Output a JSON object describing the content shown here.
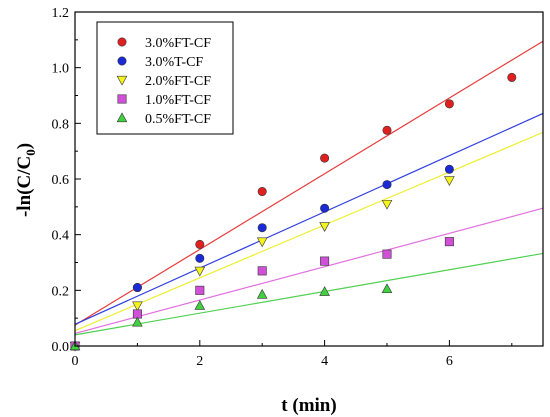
{
  "chart_data": {
    "type": "scatter",
    "xlabel": "t (min)",
    "ylabel_main": "-ln(C/C",
    "ylabel_sub": "0",
    "ylabel_close": ")",
    "xlim": [
      0,
      7.5
    ],
    "ylim": [
      0,
      1.2
    ],
    "x_ticks": [
      "0",
      "2",
      "4",
      "6"
    ],
    "x_tick_values": [
      0,
      2,
      4,
      6
    ],
    "y_ticks": [
      "0.0",
      "0.2",
      "0.4",
      "0.6",
      "0.8",
      "1.0",
      "1.2"
    ],
    "y_tick_values": [
      0,
      0.2,
      0.4,
      0.6,
      0.8,
      1.0,
      1.2
    ],
    "legend_position": "top-left",
    "series": [
      {
        "name": "3.0%FT-CF",
        "marker": "circle",
        "color": "#e02020",
        "line_color": "#e83a3a",
        "x": [
          0,
          1,
          2,
          3,
          4,
          5,
          6,
          7
        ],
        "y": [
          0.0,
          0.21,
          0.365,
          0.555,
          0.675,
          0.775,
          0.87,
          0.965
        ],
        "fit": [
          0.075,
          0.136
        ]
      },
      {
        "name": "3.0%T-CF",
        "marker": "circle",
        "color": "#1a2ad6",
        "line_color": "#2f3fe0",
        "x": [
          0,
          1,
          2,
          3,
          4,
          5,
          6
        ],
        "y": [
          0.0,
          0.21,
          0.315,
          0.425,
          0.495,
          0.58,
          0.635
        ],
        "fit": [
          0.078,
          0.101
        ]
      },
      {
        "name": "2.0%FT-CF",
        "marker": "triangle-down",
        "color": "#f4f41c",
        "line_color": "#eeee30",
        "x": [
          0,
          1,
          2,
          3,
          4,
          5,
          6
        ],
        "y": [
          0.0,
          0.145,
          0.27,
          0.375,
          0.43,
          0.51,
          0.595
        ],
        "fit": [
          0.055,
          0.095
        ]
      },
      {
        "name": "1.0%FT-CF",
        "marker": "square",
        "color": "#d050d8",
        "line_color": "#e070e0",
        "x": [
          0,
          1,
          2,
          3,
          4,
          5,
          6
        ],
        "y": [
          0.0,
          0.115,
          0.2,
          0.27,
          0.305,
          0.33,
          0.375
        ],
        "fit": [
          0.045,
          0.06
        ]
      },
      {
        "name": "0.5%FT-CF",
        "marker": "triangle-up",
        "color": "#40d040",
        "line_color": "#50d050",
        "x": [
          0,
          1,
          2,
          3,
          4,
          5
        ],
        "y": [
          0.0,
          0.085,
          0.145,
          0.185,
          0.195,
          0.205
        ],
        "fit": [
          0.04,
          0.039
        ]
      }
    ]
  }
}
